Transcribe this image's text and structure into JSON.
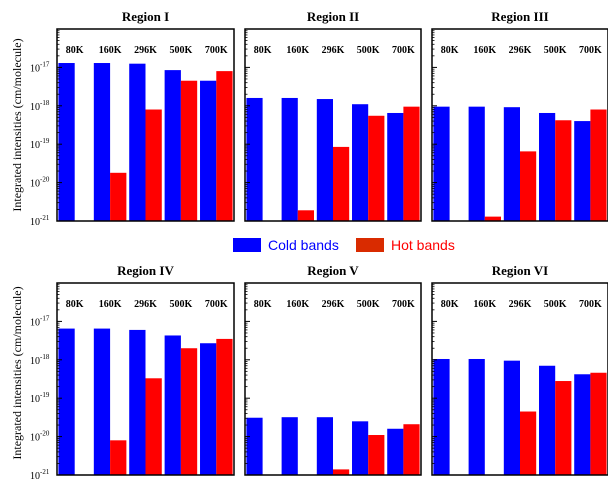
{
  "chart_data": {
    "type": "bar",
    "ylabel": "Integrated intensities (cm/molecule)",
    "yscale": "log",
    "ylim": [
      1e-21,
      1e-16
    ],
    "yticks": [
      {
        "base": "10",
        "exp": "-21"
      },
      {
        "base": "10",
        "exp": "-20"
      },
      {
        "base": "10",
        "exp": "-19"
      },
      {
        "base": "10",
        "exp": "-18"
      },
      {
        "base": "10",
        "exp": "-17"
      }
    ],
    "categories": [
      "80K",
      "160K",
      "296K",
      "500K",
      "700K"
    ],
    "legend": {
      "cold_label": "Cold bands",
      "hot_label": "Hot bands",
      "cold_color": "#0000ff",
      "hot_color": "#ff0000",
      "hot_swatch_color": "#d92b00"
    },
    "panels": [
      {
        "title": "Region I",
        "series": [
          {
            "name": "Cold bands",
            "values": [
              1.3e-17,
              1.3e-17,
              1.25e-17,
              8.5e-18,
              4.5e-18
            ]
          },
          {
            "name": "Hot bands",
            "values": [
              null,
              1.8e-20,
              8e-19,
              4.5e-18,
              8e-18
            ]
          }
        ]
      },
      {
        "title": "Region II",
        "series": [
          {
            "name": "Cold bands",
            "values": [
              1.6e-18,
              1.6e-18,
              1.5e-18,
              1.1e-18,
              6.5e-19
            ]
          },
          {
            "name": "Hot bands",
            "values": [
              null,
              1.9e-21,
              8.5e-20,
              5.5e-19,
              9.5e-19
            ]
          }
        ]
      },
      {
        "title": "Region III",
        "series": [
          {
            "name": "Cold bands",
            "values": [
              9.5e-19,
              9.5e-19,
              9.2e-19,
              6.5e-19,
              4e-19
            ]
          },
          {
            "name": "Hot bands",
            "values": [
              null,
              1.3e-21,
              6.5e-20,
              4.2e-19,
              8e-19
            ]
          }
        ]
      },
      {
        "title": "Region IV",
        "series": [
          {
            "name": "Cold bands",
            "values": [
              6.5e-18,
              6.5e-18,
              6e-18,
              4.3e-18,
              2.7e-18
            ]
          },
          {
            "name": "Hot bands",
            "values": [
              null,
              8e-21,
              3.3e-19,
              2e-18,
              3.5e-18
            ]
          }
        ]
      },
      {
        "title": "Region V",
        "series": [
          {
            "name": "Cold bands",
            "values": [
              3.1e-20,
              3.2e-20,
              3.2e-20,
              2.5e-20,
              1.6e-20
            ]
          },
          {
            "name": "Hot bands",
            "values": [
              null,
              null,
              1.4e-21,
              1.1e-20,
              2.1e-20
            ]
          }
        ]
      },
      {
        "title": "Region VI",
        "series": [
          {
            "name": "Cold bands",
            "values": [
              1.05e-18,
              1.05e-18,
              9.5e-19,
              7e-19,
              4.2e-19
            ]
          },
          {
            "name": "Hot bands",
            "values": [
              null,
              null,
              4.5e-20,
              2.8e-19,
              4.6e-19
            ]
          }
        ]
      }
    ]
  }
}
